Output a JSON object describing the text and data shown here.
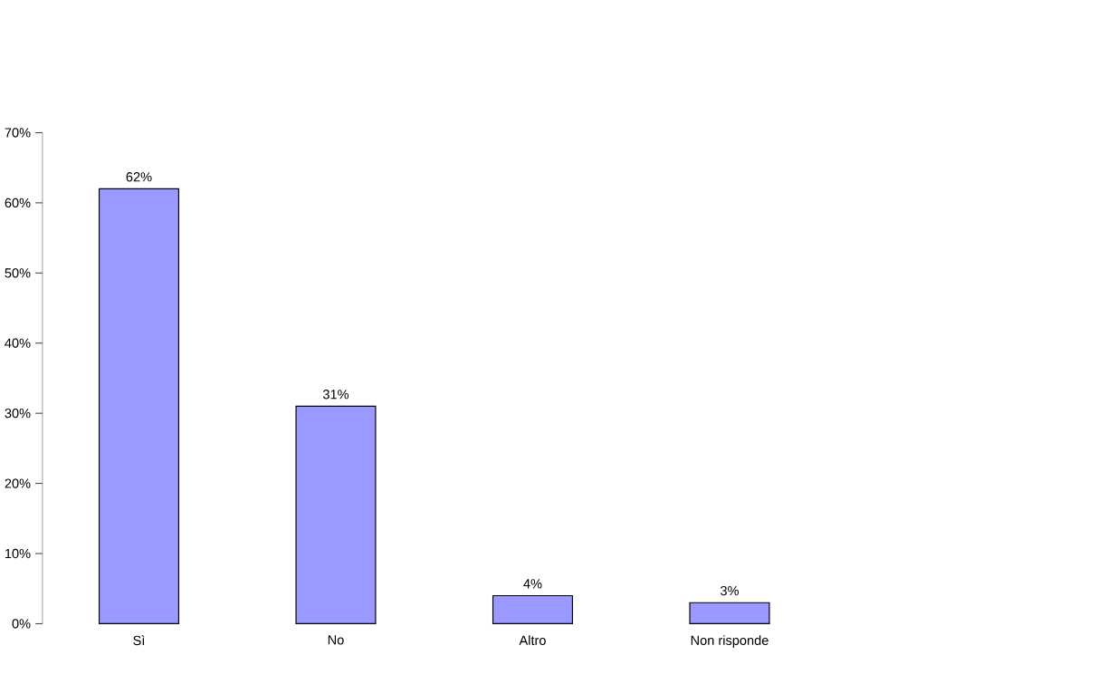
{
  "chart_data": {
    "type": "bar",
    "categories": [
      "Sì",
      "No",
      "Altro",
      "Non risponde"
    ],
    "values": [
      62,
      31,
      4,
      3
    ],
    "value_labels": [
      "62%",
      "31%",
      "4%",
      "3%"
    ],
    "color": "#9999ff",
    "ylim": [
      0,
      70
    ],
    "yticks": [
      {
        "value": 0,
        "label": "0%"
      },
      {
        "value": 10,
        "label": "10%"
      },
      {
        "value": 20,
        "label": "20%"
      },
      {
        "value": 30,
        "label": "30%"
      },
      {
        "value": 40,
        "label": "40%"
      },
      {
        "value": 50,
        "label": "50%"
      },
      {
        "value": 60,
        "label": "60%"
      },
      {
        "value": 70,
        "label": "70%"
      }
    ],
    "grid": false
  }
}
